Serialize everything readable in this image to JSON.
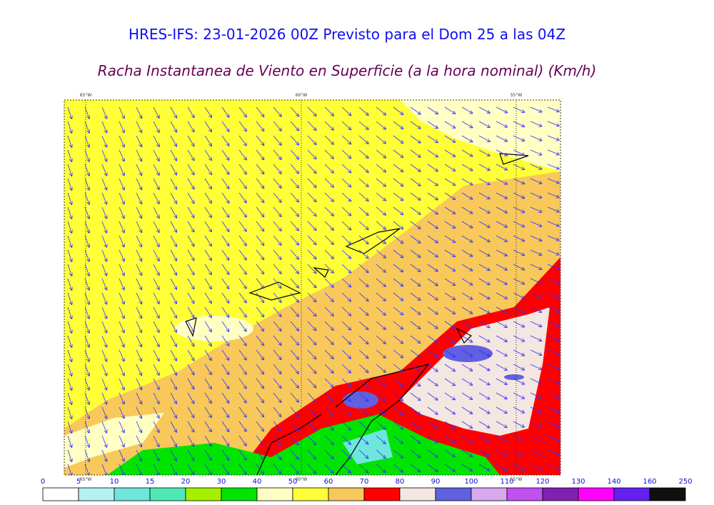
{
  "header": {
    "title": "HRES-IFS: 23-01-2026 00Z Previsto para el Dom 25 a las 04Z",
    "subtitle": "Racha Instantanea de Viento en Superficie (a la hora nominal) (Km/h)"
  },
  "map": {
    "longitude_labels": [
      "65°W",
      "60°W",
      "55°W"
    ]
  },
  "colorbar": {
    "ticks": [
      0,
      5,
      10,
      15,
      20,
      30,
      40,
      50,
      60,
      70,
      80,
      90,
      100,
      110,
      120,
      130,
      140,
      160,
      250
    ],
    "colors": [
      "#ffffff",
      "#b4f2f2",
      "#6ee6dc",
      "#4ee8b4",
      "#a4f000",
      "#00e400",
      "#ffffc4",
      "#ffff38",
      "#f8c85a",
      "#ff0000",
      "#f4e6e0",
      "#6060e0",
      "#d8a8f0",
      "#c050f0",
      "#8020b0",
      "#ff00ff",
      "#6420f0",
      "#101010"
    ]
  }
}
